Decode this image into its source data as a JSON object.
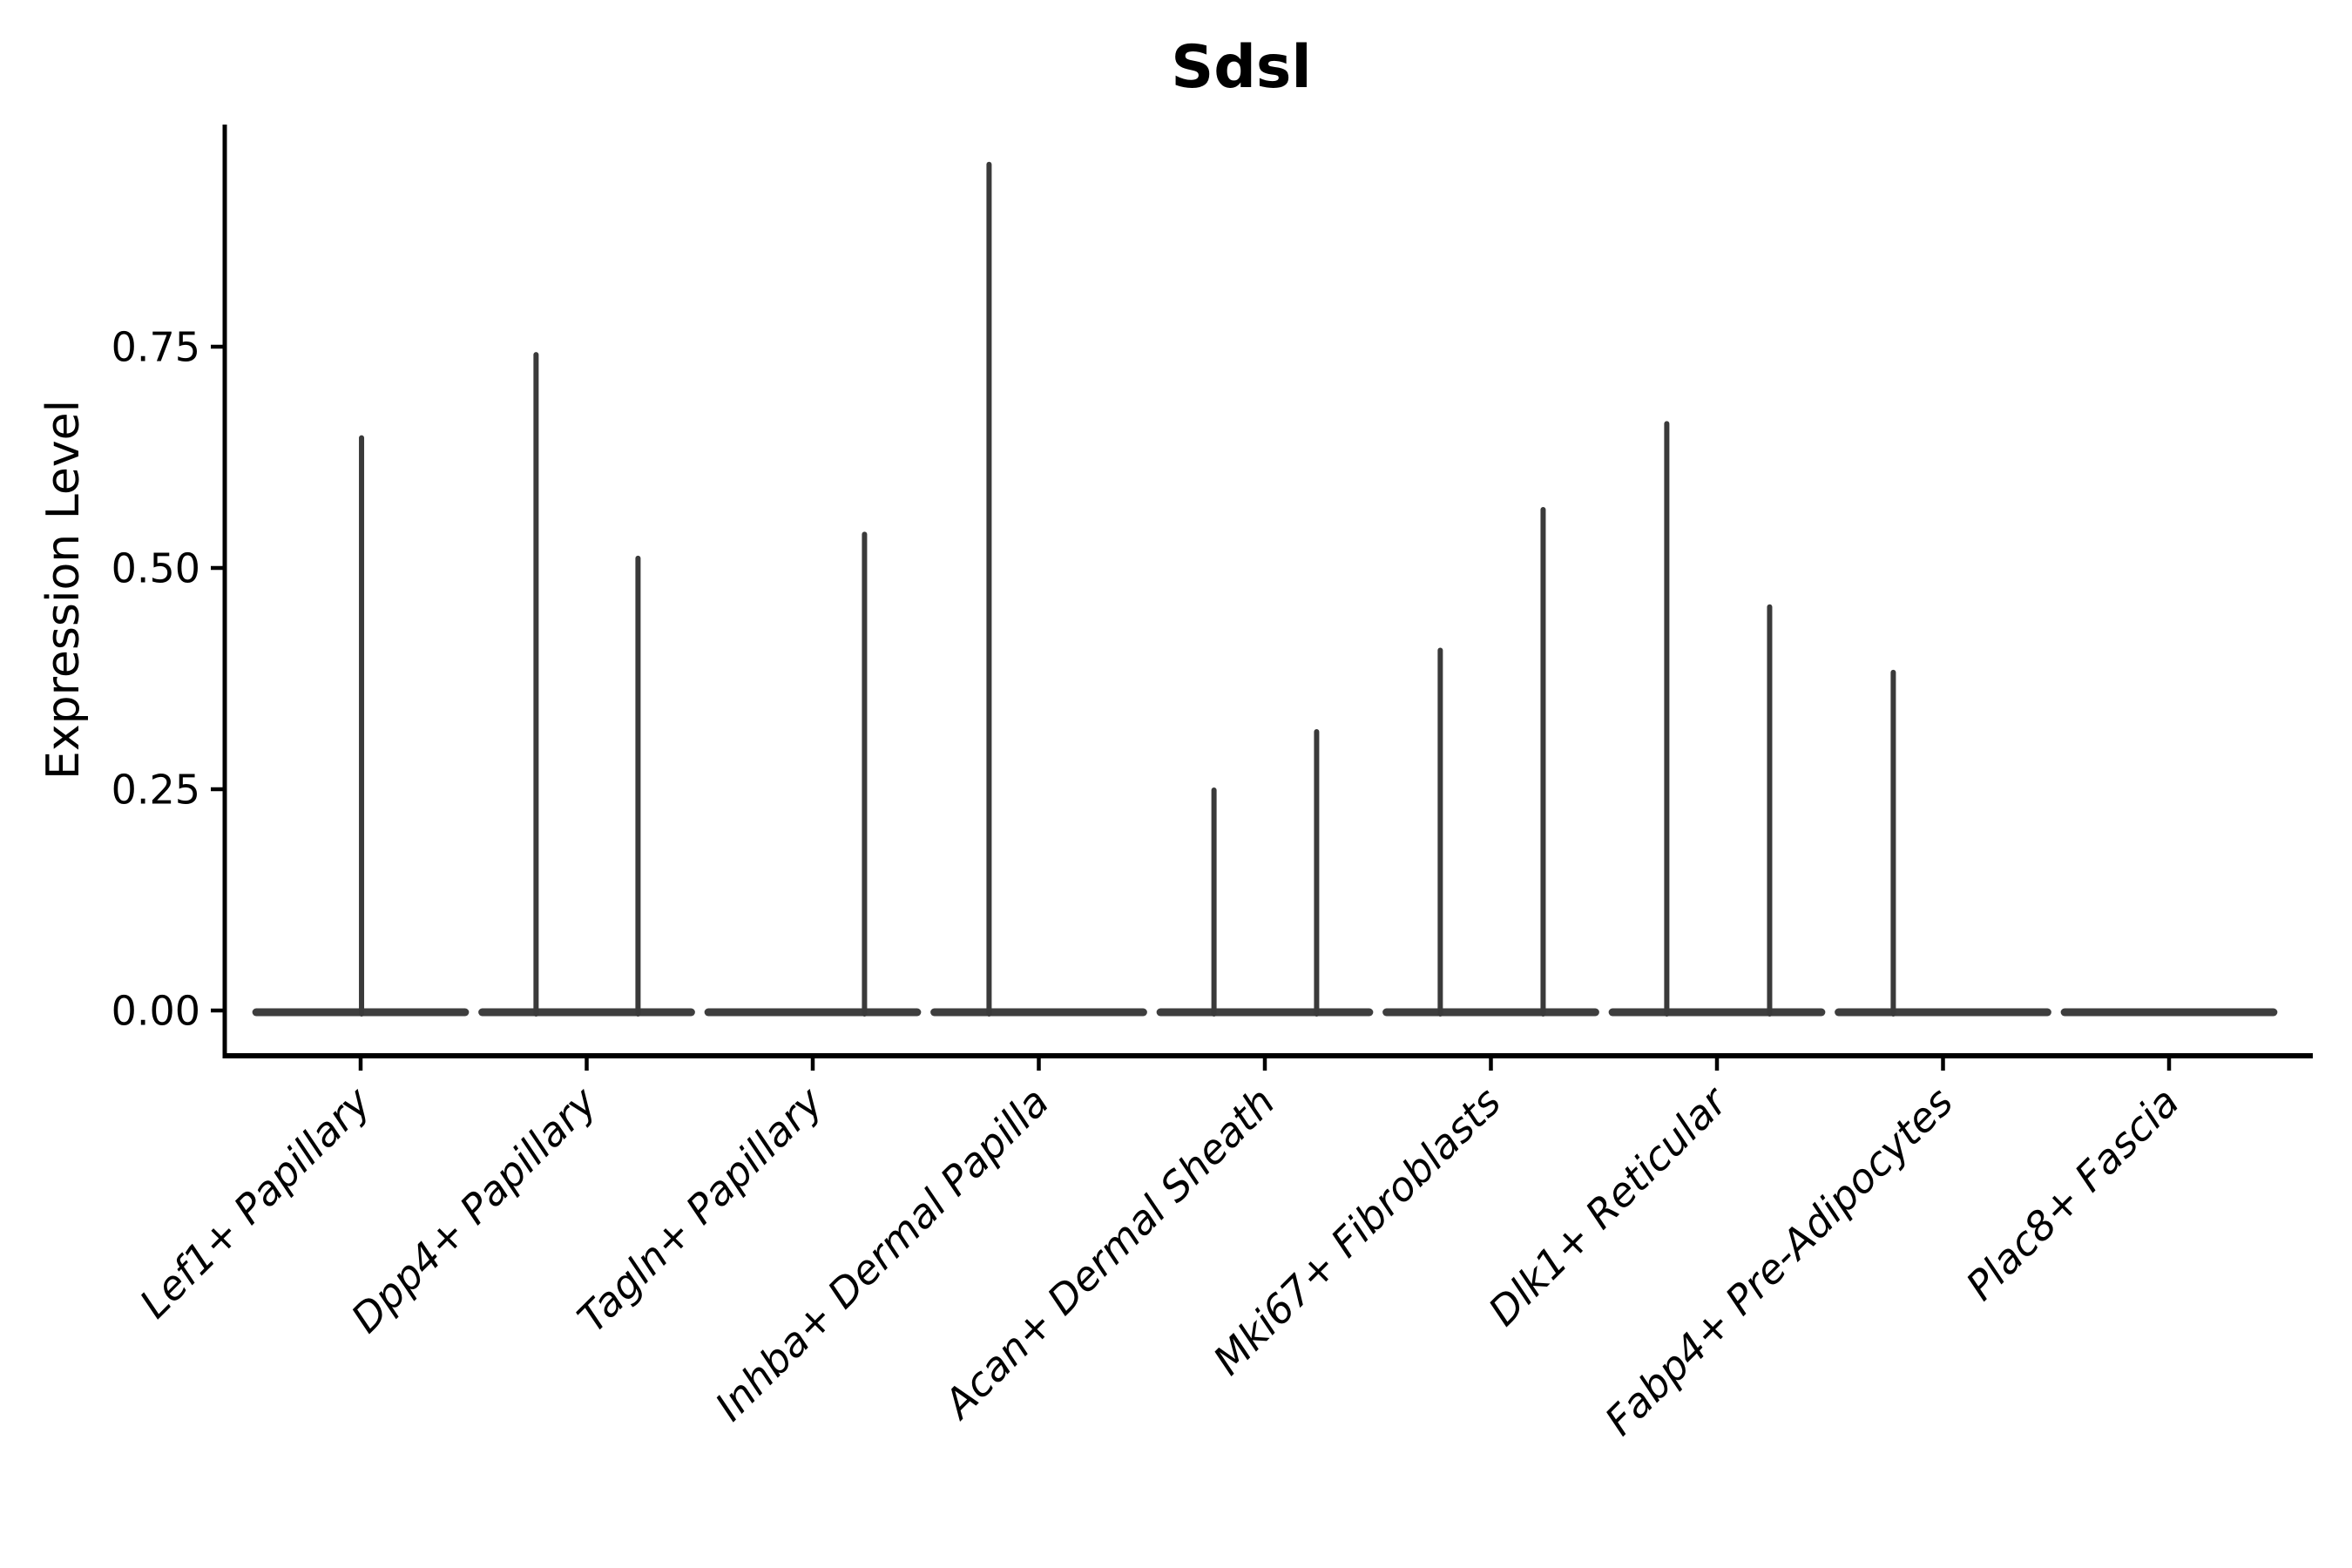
{
  "chart_data": {
    "type": "violin",
    "title": "Sdsl",
    "ylabel": "Expression Level",
    "xlabel": "",
    "background": "#ffffff",
    "grid": false,
    "legend": "none",
    "ylim": [
      -0.05,
      1.0
    ],
    "yticks": [
      {
        "value": 0.0,
        "label": "0.00"
      },
      {
        "value": 0.25,
        "label": "0.25"
      },
      {
        "value": 0.5,
        "label": "0.50"
      },
      {
        "value": 0.75,
        "label": "0.75"
      }
    ],
    "categories": [
      "Lef1+ Papillary",
      "Dpp4+ Papillary",
      "Tagln+ Papillary",
      "Inhba+ Dermal Papilla",
      "Acan+ Dermal Sheath",
      "Mki67+ Fibroblasts",
      "Dlk1+ Reticular",
      "Fabp4+ Pre-Adipocytes",
      "Plac8+ Fascia"
    ],
    "violins": [
      {
        "category": "Lef1+ Papillary",
        "base_at_zero": true,
        "spikes": [
          {
            "dx": 0.004,
            "max": 0.647
          }
        ]
      },
      {
        "category": "Dpp4+ Papillary",
        "base_at_zero": true,
        "spikes": [
          {
            "dx": -0.224,
            "max": 0.741
          },
          {
            "dx": 0.227,
            "max": 0.511
          }
        ]
      },
      {
        "category": "Tagln+ Papillary",
        "base_at_zero": true,
        "spikes": [
          {
            "dx": 0.229,
            "max": 0.538
          }
        ]
      },
      {
        "category": "Inhba+ Dermal Papilla",
        "base_at_zero": true,
        "spikes": [
          {
            "dx": -0.22,
            "max": 0.956
          }
        ]
      },
      {
        "category": "Acan+ Dermal Sheath",
        "base_at_zero": true,
        "spikes": [
          {
            "dx": -0.225,
            "max": 0.249
          },
          {
            "dx": 0.229,
            "max": 0.315
          }
        ]
      },
      {
        "category": "Mki67+ Fibroblasts",
        "base_at_zero": true,
        "spikes": [
          {
            "dx": -0.224,
            "max": 0.407
          },
          {
            "dx": 0.231,
            "max": 0.566
          }
        ]
      },
      {
        "category": "Dlk1+ Reticular",
        "base_at_zero": true,
        "spikes": [
          {
            "dx": -0.222,
            "max": 0.663
          },
          {
            "dx": 0.233,
            "max": 0.456
          }
        ]
      },
      {
        "category": "Fabp4+ Pre-Adipocytes",
        "base_at_zero": true,
        "spikes": [
          {
            "dx": -0.22,
            "max": 0.382
          }
        ]
      },
      {
        "category": "Plac8+ Fascia",
        "base_at_zero": true,
        "spikes": []
      }
    ],
    "base_halfwidth_frac": 0.462,
    "colors": {
      "violin": "#3a3a3a",
      "violin_base": "#3e3e3e",
      "axis": "#000000",
      "text": "#000000"
    }
  }
}
